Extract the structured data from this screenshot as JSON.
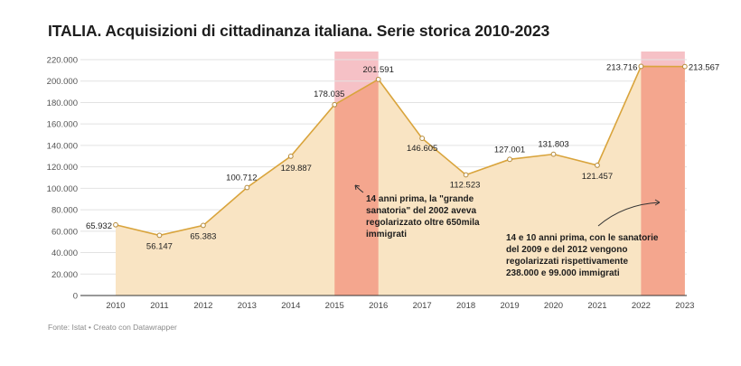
{
  "header": {
    "title": "ITALIA. Acquisizioni di cittadinanza italiana. Serie storica 2010-2023"
  },
  "footer": {
    "source": "Fonte: Istat • Creato con Datawrapper"
  },
  "colors": {
    "line": "#d9a43c",
    "area_fill": "#f9e4c3",
    "highlight_light": "#f6c1c6",
    "highlight_strong": "#f4a68e",
    "grid": "#e2e2e2",
    "axis": "#333333"
  },
  "chart_data": {
    "type": "area",
    "title": "ITALIA. Acquisizioni di cittadinanza italiana. Serie storica 2010-2023",
    "xlabel": "",
    "ylabel": "",
    "ylim": [
      0,
      220000
    ],
    "yticks": [
      "0",
      "20.000",
      "40.000",
      "60.000",
      "80.000",
      "100.000",
      "120.000",
      "140.000",
      "160.000",
      "180.000",
      "200.000",
      "220.000"
    ],
    "grid": true,
    "categories": [
      "2010",
      "2011",
      "2012",
      "2013",
      "2014",
      "2015",
      "2016",
      "2017",
      "2018",
      "2019",
      "2020",
      "2021",
      "2022",
      "2023"
    ],
    "values": [
      65932,
      56147,
      65383,
      100712,
      129887,
      178035,
      201591,
      146605,
      112523,
      127001,
      131803,
      121457,
      213716,
      213567
    ],
    "data_labels": [
      "65.932",
      "56.147",
      "65.383",
      "100.712",
      "129.887",
      "178.035",
      "201.591",
      "146.605",
      "112.523",
      "127.001",
      "131.803",
      "121.457",
      "213.716",
      "213.567"
    ],
    "highlight_ranges": [
      {
        "from": "2015",
        "to": "2016"
      },
      {
        "from": "2022",
        "to": "2023"
      }
    ],
    "annotations": [
      {
        "lines": [
          "14 anni prima, la \"grande",
          "sanatoria\" del 2002 aveva",
          "regolarizzato oltre 650mila",
          "immigrati"
        ]
      },
      {
        "lines": [
          "14 e 10 anni prima, con le sanatorie",
          "del 2009 e del 2012 vengono",
          "regolarizzati rispettivamente",
          "238.000 e 99.000 immigrati"
        ]
      }
    ]
  }
}
